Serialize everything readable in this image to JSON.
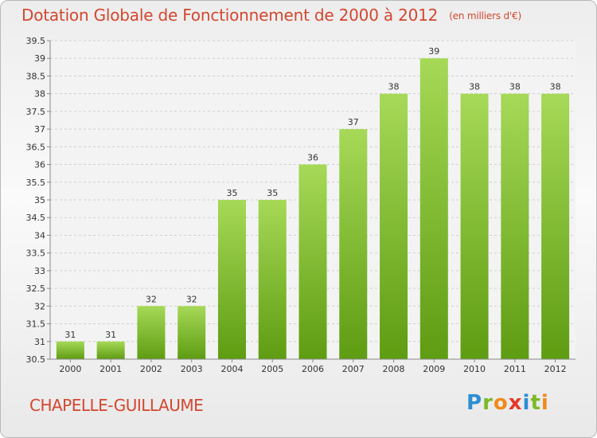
{
  "title": "Dotation Globale de Fonctionnement de 2000 à 2012",
  "unit": "(en milliers d'€)",
  "commune": "CHAPELLE-GUILLAUME",
  "logo": "Proxiti",
  "colors": {
    "title": "#d3472f",
    "bar_light": "#a6d957",
    "bar_dark": "#5e9c12",
    "grid": "#d0d0d0"
  },
  "chart_data": {
    "type": "bar",
    "title": "Dotation Globale de Fonctionnement de 2000 à 2012",
    "subtitle": "(en milliers d'€)",
    "xlabel": "",
    "ylabel": "",
    "categories": [
      "2000",
      "2001",
      "2002",
      "2003",
      "2004",
      "2005",
      "2006",
      "2007",
      "2008",
      "2009",
      "2010",
      "2011",
      "2012"
    ],
    "values": [
      31,
      31,
      32,
      32,
      35,
      35,
      36,
      37,
      38,
      39,
      38,
      38,
      38
    ],
    "data_labels": [
      "31",
      "31",
      "32",
      "32",
      "35",
      "35",
      "36",
      "37",
      "38",
      "39",
      "38",
      "38",
      "38"
    ],
    "ylim": [
      30.5,
      39.5
    ],
    "yticks": [
      "30.5",
      "31",
      "31.5",
      "32",
      "32.5",
      "33",
      "33.5",
      "34",
      "34.5",
      "35",
      "35.5",
      "36",
      "36.5",
      "37",
      "37.5",
      "38",
      "38.5",
      "39",
      "39.5"
    ],
    "grid": true,
    "legend": "none"
  }
}
